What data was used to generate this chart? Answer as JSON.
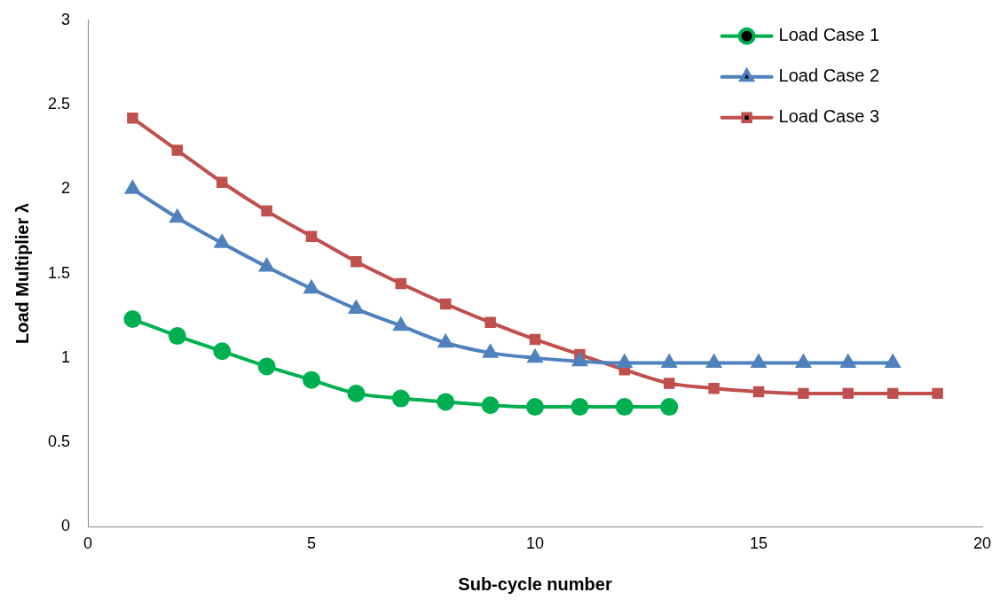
{
  "chart_data": {
    "type": "line",
    "xlabel": "Sub-cycle number",
    "ylabel": "Load Multiplier λ",
    "xlim": [
      0,
      20
    ],
    "xticks": [
      0,
      5,
      10,
      15,
      20
    ],
    "ylim": [
      0,
      3
    ],
    "yticks": [
      0,
      0.5,
      1,
      1.5,
      2,
      2.5,
      3
    ],
    "grid": false,
    "legend": "top right",
    "series": [
      {
        "name": "Load Case 1",
        "color": "#00b050",
        "marker": "circle",
        "x": [
          1,
          2,
          3,
          4,
          5,
          6,
          7,
          8,
          9,
          10,
          11,
          12,
          13
        ],
        "values": [
          1.23,
          1.13,
          1.04,
          0.95,
          0.87,
          0.79,
          0.76,
          0.74,
          0.72,
          0.71,
          0.71,
          0.71,
          0.71
        ]
      },
      {
        "name": "Load Case 2",
        "color": "#4f81bd",
        "marker": "triangle",
        "x": [
          1,
          2,
          3,
          4,
          5,
          6,
          7,
          8,
          9,
          10,
          11,
          12,
          13,
          14,
          15,
          16,
          17,
          18
        ],
        "values": [
          2.0,
          1.83,
          1.68,
          1.54,
          1.41,
          1.29,
          1.19,
          1.09,
          1.03,
          1.0,
          0.98,
          0.97,
          0.97,
          0.97,
          0.97,
          0.97,
          0.97,
          0.97
        ]
      },
      {
        "name": "Load Case 3",
        "color": "#c0504d",
        "marker": "square",
        "x": [
          1,
          2,
          3,
          4,
          5,
          6,
          7,
          8,
          9,
          10,
          11,
          12,
          13,
          14,
          15,
          16,
          17,
          18,
          19
        ],
        "values": [
          2.42,
          2.23,
          2.04,
          1.87,
          1.72,
          1.57,
          1.44,
          1.32,
          1.21,
          1.11,
          1.02,
          0.93,
          0.85,
          0.82,
          0.8,
          0.79,
          0.79,
          0.79,
          0.79
        ]
      }
    ]
  }
}
